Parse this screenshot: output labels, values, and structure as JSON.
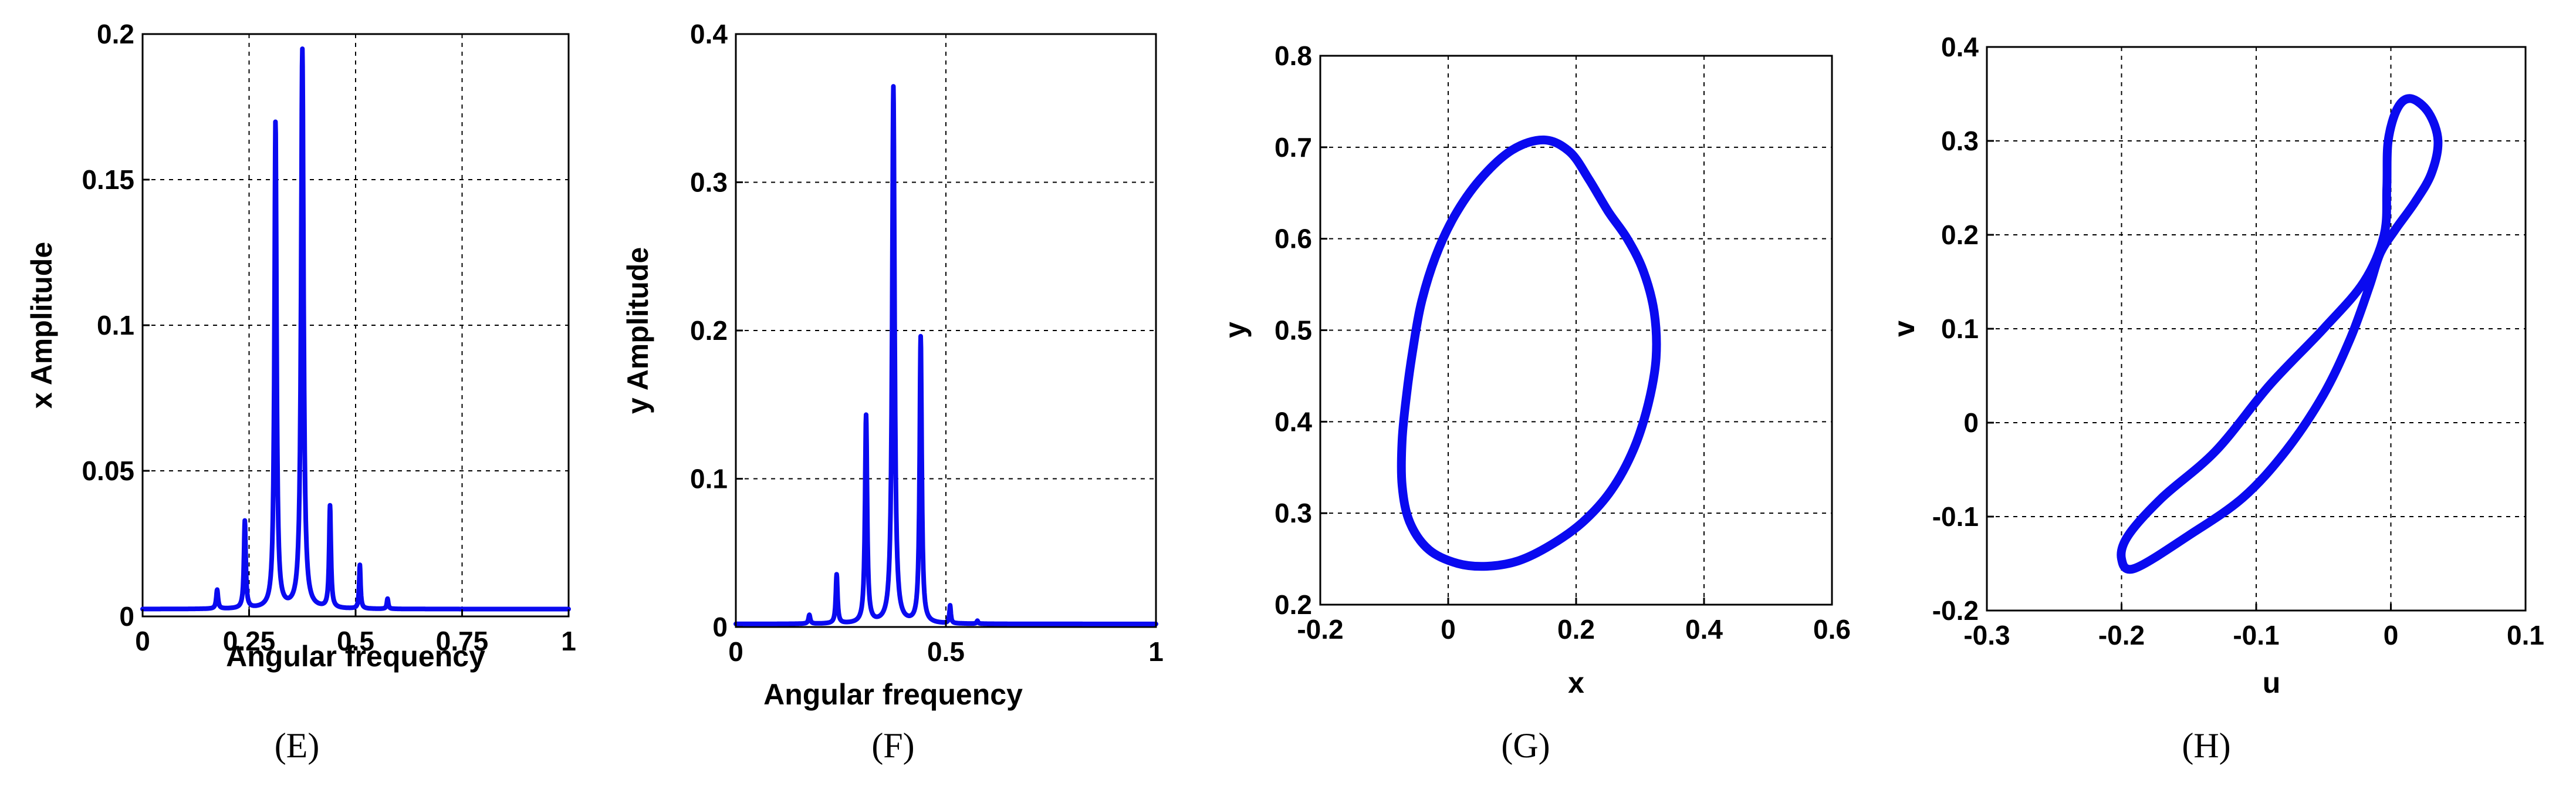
{
  "chart_data": [
    {
      "type": "line",
      "panel": "E",
      "caption": "(E)",
      "xlabel": "Angular frequency",
      "ylabel": "x Amplitude",
      "xlim": [
        0,
        1
      ],
      "ylim": [
        0,
        0.2
      ],
      "xticks": [
        0,
        0.25,
        0.5,
        0.75,
        1
      ],
      "yticks": [
        0,
        0.05,
        0.1,
        0.15,
        0.2
      ],
      "xtick_labels": [
        "0",
        "0.25",
        "0.5",
        "0.75",
        "1"
      ],
      "ytick_labels": [
        "0",
        "0.05",
        "0.1",
        "0.15",
        "0.2"
      ],
      "grid": true,
      "baseline": 0.0025,
      "peaks": [
        {
          "x": 0.175,
          "amp": 0.0065,
          "width": 0.0025
        },
        {
          "x": 0.24,
          "amp": 0.03,
          "width": 0.0025
        },
        {
          "x": 0.312,
          "amp": 0.167,
          "width": 0.003
        },
        {
          "x": 0.375,
          "amp": 0.192,
          "width": 0.0035
        },
        {
          "x": 0.44,
          "amp": 0.035,
          "width": 0.0025
        },
        {
          "x": 0.51,
          "amp": 0.015,
          "width": 0.002
        },
        {
          "x": 0.575,
          "amp": 0.0035,
          "width": 0.002
        }
      ],
      "series": [
        {
          "name": "x Amplitude",
          "color": "#0a0af0"
        }
      ]
    },
    {
      "type": "line",
      "panel": "F",
      "caption": "(F)",
      "xlabel": "Angular frequency",
      "ylabel": "y Amplitude",
      "xlim": [
        0,
        1
      ],
      "ylim": [
        0,
        0.4
      ],
      "xticks": [
        0,
        0.5,
        1
      ],
      "yticks": [
        0,
        0.1,
        0.2,
        0.3,
        0.4
      ],
      "xtick_labels": [
        "0",
        "0.5",
        "1"
      ],
      "ytick_labels": [
        "0",
        "0.1",
        "0.2",
        "0.3",
        "0.4"
      ],
      "grid": true,
      "baseline": 0.002,
      "peaks": [
        {
          "x": 0.175,
          "amp": 0.006,
          "width": 0.0025
        },
        {
          "x": 0.24,
          "amp": 0.033,
          "width": 0.0025
        },
        {
          "x": 0.31,
          "amp": 0.14,
          "width": 0.003
        },
        {
          "x": 0.375,
          "amp": 0.362,
          "width": 0.0035
        },
        {
          "x": 0.44,
          "amp": 0.193,
          "width": 0.003
        },
        {
          "x": 0.51,
          "amp": 0.012,
          "width": 0.002
        },
        {
          "x": 0.575,
          "amp": 0.002,
          "width": 0.002
        }
      ],
      "series": [
        {
          "name": "y Amplitude",
          "color": "#0a0af0"
        }
      ]
    },
    {
      "type": "line",
      "panel": "G",
      "caption": "(G)",
      "xlabel": "x",
      "ylabel": "y",
      "xlim": [
        -0.2,
        0.6
      ],
      "ylim": [
        0.2,
        0.8
      ],
      "xticks": [
        -0.2,
        0,
        0.2,
        0.4,
        0.6
      ],
      "yticks": [
        0.2,
        0.3,
        0.4,
        0.5,
        0.6,
        0.7,
        0.8
      ],
      "xtick_labels": [
        "-0.2",
        "0",
        "0.2",
        "0.4",
        "0.6"
      ],
      "ytick_labels": [
        "0.2",
        "0.3",
        "0.4",
        "0.5",
        "0.6",
        "0.7",
        "0.8"
      ],
      "grid": true,
      "closed": true,
      "points": [
        [
          0.15,
          0.708
        ],
        [
          0.19,
          0.695
        ],
        [
          0.22,
          0.665
        ],
        [
          0.25,
          0.63
        ],
        [
          0.28,
          0.6
        ],
        [
          0.305,
          0.565
        ],
        [
          0.322,
          0.52
        ],
        [
          0.325,
          0.47
        ],
        [
          0.313,
          0.42
        ],
        [
          0.29,
          0.37
        ],
        [
          0.255,
          0.325
        ],
        [
          0.21,
          0.29
        ],
        [
          0.16,
          0.265
        ],
        [
          0.11,
          0.248
        ],
        [
          0.06,
          0.242
        ],
        [
          0.015,
          0.245
        ],
        [
          -0.03,
          0.26
        ],
        [
          -0.06,
          0.29
        ],
        [
          -0.072,
          0.33
        ],
        [
          -0.072,
          0.38
        ],
        [
          -0.065,
          0.43
        ],
        [
          -0.055,
          0.48
        ],
        [
          -0.042,
          0.53
        ],
        [
          -0.02,
          0.58
        ],
        [
          0.01,
          0.625
        ],
        [
          0.05,
          0.665
        ],
        [
          0.1,
          0.697
        ]
      ],
      "series": [
        {
          "name": "orbit",
          "color": "#0a0af0"
        }
      ]
    },
    {
      "type": "line",
      "panel": "H",
      "caption": "(H)",
      "xlabel": "u",
      "ylabel": "v",
      "xlim": [
        -0.3,
        0.1
      ],
      "ylim": [
        -0.2,
        0.4
      ],
      "xticks": [
        -0.3,
        -0.2,
        -0.1,
        0,
        0.1
      ],
      "yticks": [
        -0.2,
        -0.1,
        0,
        0.1,
        0.2,
        0.3,
        0.4
      ],
      "xtick_labels": [
        "-0.3",
        "-0.2",
        "-0.1",
        "0",
        "0.1"
      ],
      "ytick_labels": [
        "-0.2",
        "-0.1",
        "0",
        "0.1",
        "0.2",
        "0.3",
        "0.4"
      ],
      "grid": true,
      "closed": true,
      "points": [
        [
          0.015,
          0.345
        ],
        [
          0.028,
          0.33
        ],
        [
          0.035,
          0.3
        ],
        [
          0.03,
          0.265
        ],
        [
          0.018,
          0.235
        ],
        [
          0.003,
          0.205
        ],
        [
          -0.008,
          0.18
        ],
        [
          -0.016,
          0.145
        ],
        [
          -0.03,
          0.09
        ],
        [
          -0.05,
          0.03
        ],
        [
          -0.078,
          -0.03
        ],
        [
          -0.11,
          -0.08
        ],
        [
          -0.15,
          -0.12
        ],
        [
          -0.19,
          -0.155
        ],
        [
          -0.2,
          -0.145
        ],
        [
          -0.195,
          -0.12
        ],
        [
          -0.17,
          -0.08
        ],
        [
          -0.13,
          -0.03
        ],
        [
          -0.09,
          0.04
        ],
        [
          -0.05,
          0.1
        ],
        [
          -0.02,
          0.15
        ],
        [
          -0.005,
          0.2
        ],
        [
          -0.003,
          0.25
        ],
        [
          -0.002,
          0.3
        ],
        [
          0.005,
          0.335
        ]
      ],
      "series": [
        {
          "name": "orbit",
          "color": "#0a0af0"
        }
      ]
    }
  ]
}
